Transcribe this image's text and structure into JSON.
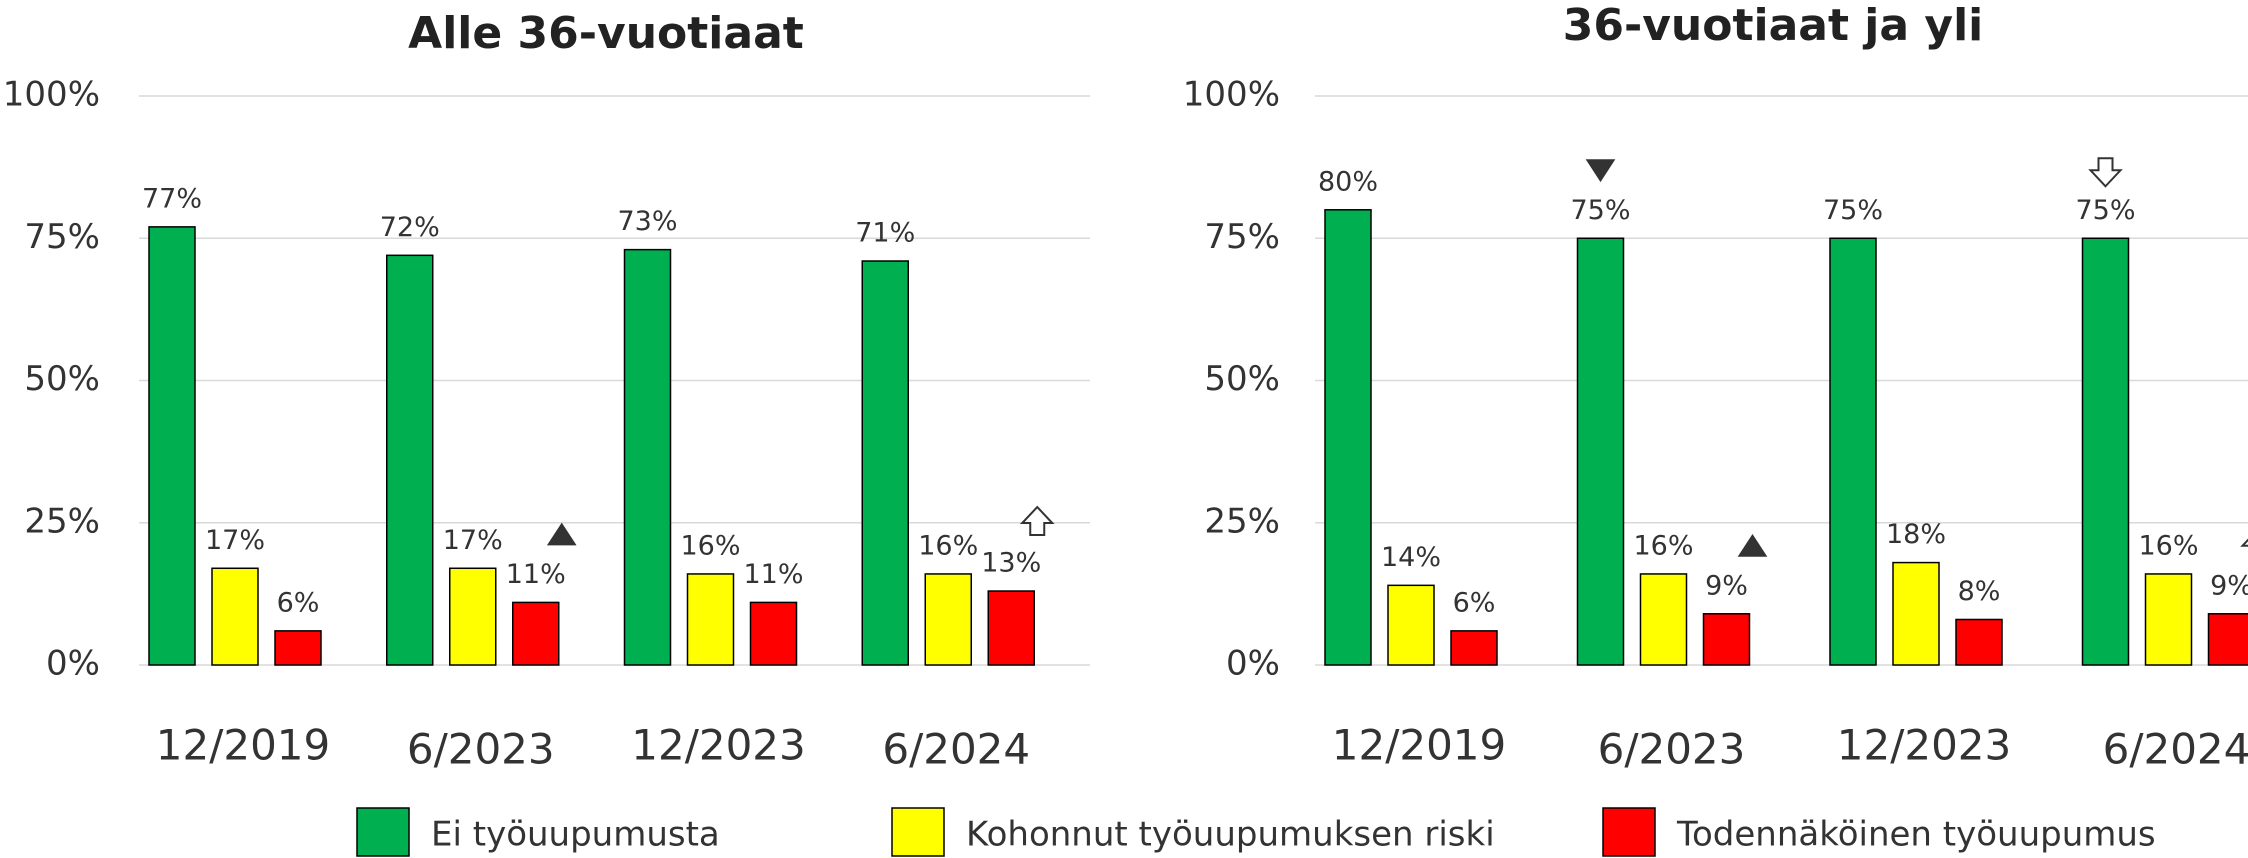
{
  "chart_data": [
    {
      "type": "bar",
      "title": "Alle 36-vuotiaat",
      "categories": [
        "12/2019",
        "6/2023",
        "12/2023",
        "6/2024"
      ],
      "series": [
        {
          "name": "Ei työuupumusta",
          "color": "#00b050",
          "values": [
            77,
            72,
            73,
            71
          ],
          "value_labels": [
            "77%",
            "72%",
            "73%",
            "71%"
          ]
        },
        {
          "name": "Kohonnut työuupumuksen riski",
          "color": "#ffff00",
          "values": [
            17,
            17,
            16,
            16
          ],
          "value_labels": [
            "17%",
            "17%",
            "16%",
            "16%"
          ]
        },
        {
          "name": "Todennäköinen työuupumus",
          "color": "#ff0000",
          "values": [
            6,
            11,
            11,
            13
          ],
          "value_labels": [
            "6%",
            "11%",
            "11%",
            "13%"
          ]
        }
      ],
      "ylim": [
        0,
        100
      ],
      "yticks": [
        {
          "value": 0,
          "label": "0%"
        },
        {
          "value": 25,
          "label": "25%"
        },
        {
          "value": 50,
          "label": "50%"
        },
        {
          "value": 75,
          "label": "75%"
        },
        {
          "value": 100,
          "label": "100%"
        }
      ],
      "grid": true
    },
    {
      "type": "bar",
      "title": "36-vuotiaat ja yli",
      "categories": [
        "12/2019",
        "6/2023",
        "12/2023",
        "6/2024"
      ],
      "series": [
        {
          "color": "#00b050",
          "values": [
            80,
            75,
            75,
            75
          ],
          "value_labels": [
            "80%",
            "75%",
            "75%",
            "75%"
          ]
        },
        {
          "color": "#ffff00",
          "values": [
            14,
            16,
            18,
            16
          ],
          "value_labels": [
            "14%",
            "16%",
            "18%",
            "16%"
          ]
        },
        {
          "color": "#ff0000",
          "values": [
            6,
            9,
            8,
            9
          ],
          "value_labels": [
            "6%",
            "9%",
            "8%",
            "9%"
          ]
        }
      ],
      "ylim": [
        0,
        100
      ],
      "yticks": [
        {
          "value": 0,
          "label": "0%"
        },
        {
          "value": 25,
          "label": "25%"
        },
        {
          "value": 50,
          "label": "50%"
        },
        {
          "value": 75,
          "label": "75%"
        },
        {
          "value": 100,
          "label": "100%"
        }
      ],
      "grid": true
    }
  ]
}
